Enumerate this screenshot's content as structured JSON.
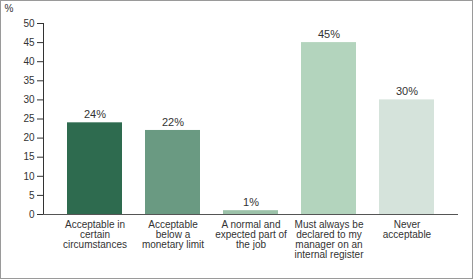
{
  "chart_data": {
    "type": "bar",
    "categories": [
      "Acceptable in certain circumstances",
      "Acceptable below a monetary limit",
      "A normal and expected part of the job",
      "Must always be declared to my manager on an internal register",
      "Never acceptable"
    ],
    "values": [
      24,
      22,
      1,
      45,
      30
    ],
    "value_labels": [
      "24%",
      "22%",
      "1%",
      "45%",
      "30%"
    ],
    "colors": [
      "#2e6b4f",
      "#6a9a82",
      "#9cc2a9",
      "#b3d4bd",
      "#d5e3db"
    ],
    "ylabel": "%",
    "ylim": [
      0,
      50
    ],
    "yticks": [
      0,
      5,
      10,
      15,
      20,
      25,
      30,
      35,
      40,
      45,
      50
    ],
    "grid": false,
    "data_labels": true
  }
}
